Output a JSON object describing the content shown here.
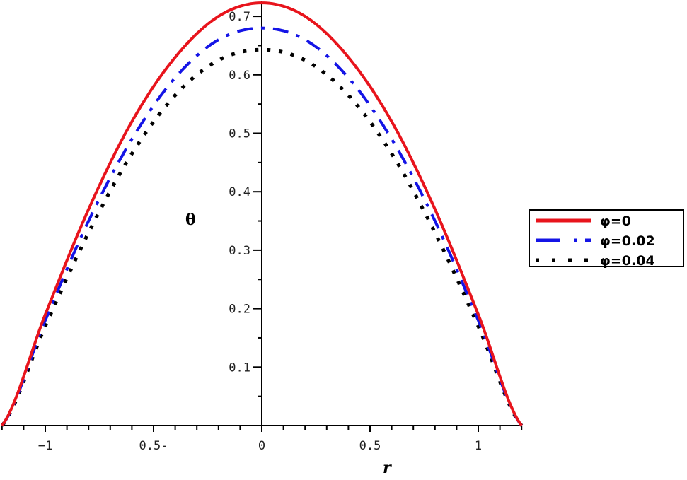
{
  "chart_data": {
    "type": "line",
    "title": "",
    "xlabel": "r",
    "ylabel": "θ",
    "xlim": [
      -1.2,
      1.2
    ],
    "ylim": [
      0,
      0.73
    ],
    "grid": false,
    "legend_position": "right",
    "x_ticks": [
      "−1",
      "0.5-",
      "0",
      "0.5",
      "1"
    ],
    "x_tick_values": [
      -1,
      -0.5,
      0,
      0.5,
      1
    ],
    "y_ticks": [
      "0.1",
      "0.2",
      "0.3",
      "0.4",
      "0.5",
      "0.6",
      "0.7"
    ],
    "y_tick_values": [
      0.1,
      0.2,
      0.3,
      0.4,
      0.5,
      0.6,
      0.7
    ],
    "x": [
      -1.2,
      -1.0,
      -0.8,
      -0.6,
      -0.4,
      -0.2,
      0,
      0.2,
      0.4,
      0.6,
      0.8,
      1.0,
      1.2
    ],
    "series": [
      {
        "name": "φ=0",
        "color": "#e8141c",
        "style": "solid",
        "values": [
          0,
          0.19,
          0.37,
          0.52,
          0.63,
          0.7,
          0.723,
          0.7,
          0.63,
          0.52,
          0.37,
          0.19,
          0
        ]
      },
      {
        "name": "φ=0.02",
        "color": "#1414e6",
        "style": "dashdot",
        "values": [
          0,
          0.18,
          0.35,
          0.49,
          0.595,
          0.66,
          0.68,
          0.66,
          0.595,
          0.49,
          0.35,
          0.18,
          0
        ]
      },
      {
        "name": "φ=0.04",
        "color": "#000000",
        "style": "dotted",
        "values": [
          0,
          0.17,
          0.33,
          0.465,
          0.565,
          0.625,
          0.643,
          0.625,
          0.565,
          0.465,
          0.33,
          0.17,
          0
        ]
      }
    ]
  },
  "labels": {
    "xlabel": "r",
    "ylabel": "θ"
  },
  "legend": [
    "φ=0",
    "φ=0.02",
    "φ=0.04"
  ]
}
